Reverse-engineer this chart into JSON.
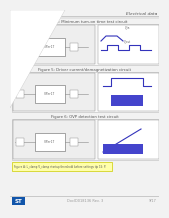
{
  "page_bg": "#e8e8e8",
  "content_bg": "#f2f2f2",
  "white": "#ffffff",
  "header_text": "Electrical data",
  "fig4_title": "Figure 4: Minimum turn-on time test circuit",
  "fig5_title": "Figure 5: Driver current/demagnetization circuit",
  "fig6_title": "Figure 6: OVP detection test circuit",
  "note_text": "Figure A: L_clamp V_clamp startup threshold before settings tip 15: P.",
  "footer_center": "DocID018136 Rev. 3",
  "footer_right": "9/17",
  "line_color": "#aaaaaa",
  "circuit_line": "#888888",
  "box_edge": "#bbbbbb",
  "text_color": "#555555",
  "blue_wave": "#3333bb",
  "blue_fill": "#4444cc",
  "note_bg": "#ffffaa",
  "note_edge": "#cccc00",
  "st_blue": "#1155aa",
  "triangle_white": "#ffffff",
  "fig_box_bg": "#f8f8f8",
  "circuit_bg": "#eeeeee",
  "waveform_bg": "#ffffff",
  "fold_shadow": "#cccccc",
  "medium_gray": "#999999",
  "dark_gray": "#666666"
}
